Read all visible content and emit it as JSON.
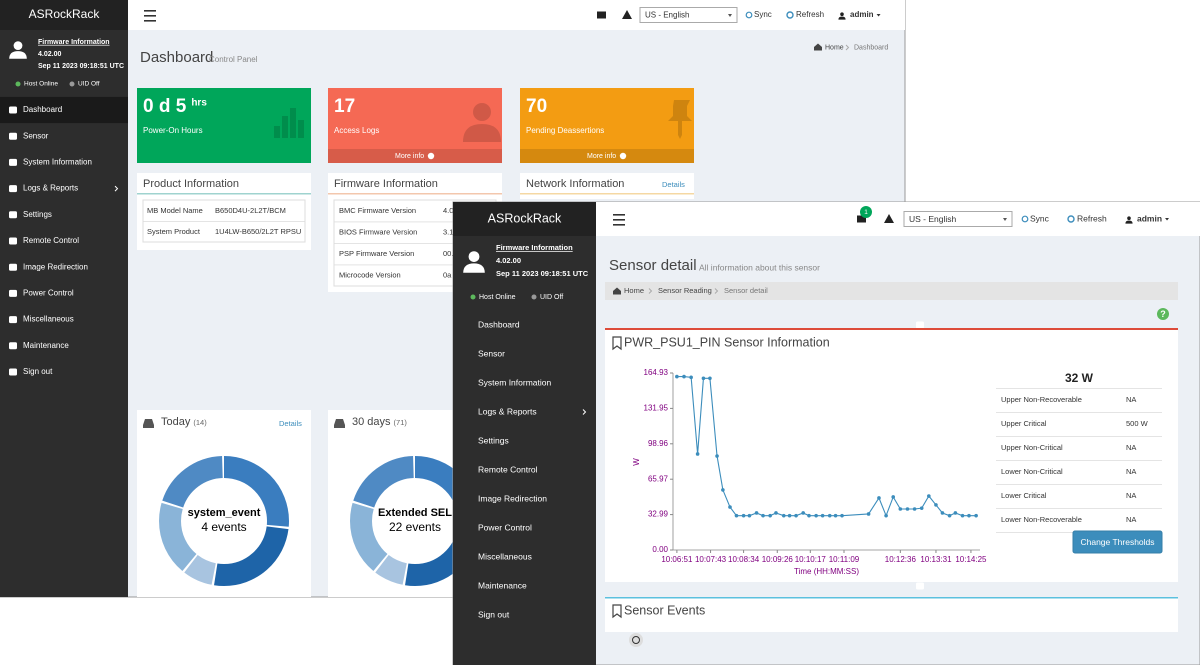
{
  "back": {
    "brand": "ASRockRack",
    "firmware": {
      "label": "Firmware Information",
      "version": "4.02.00",
      "date": "Sep 11 2023 09:18:51 UTC"
    },
    "status": {
      "host": "Host Online",
      "uid": "UID Off"
    },
    "menu": [
      "Dashboard",
      "Sensor",
      "System Information",
      "Logs & Reports",
      "Settings",
      "Remote Control",
      "Image Redirection",
      "Power Control",
      "Miscellaneous",
      "Maintenance",
      "Sign out"
    ],
    "topbar": {
      "language": "US - English",
      "sync": "Sync",
      "refresh": "Refresh",
      "user": "admin"
    },
    "heading": "Dashboard",
    "subheading": "Control Panel",
    "breadcrumb": [
      "Home",
      "Dashboard"
    ],
    "tiles": [
      {
        "value": "0 d 5",
        "unit": "hrs",
        "label": "Power-On Hours",
        "color": "#00a65a"
      },
      {
        "value": "17",
        "label": "Access Logs",
        "more": "More info",
        "color": "#f56954"
      },
      {
        "value": "70",
        "label": "Pending Deassertions",
        "more": "More info",
        "color": "#f39c12"
      }
    ],
    "product": {
      "title": "Product Information",
      "rows": [
        [
          "MB Model Name",
          "B650D4U-2L2T/BCM"
        ],
        [
          "System Product",
          "1U4LW-B650/2L2T RPSU"
        ]
      ]
    },
    "firmware_panel": {
      "title": "Firmware Information",
      "rows": [
        [
          "BMC Firmware Version",
          "4.0"
        ],
        [
          "BIOS Firmware Version",
          "3.1"
        ],
        [
          "PSP Firmware Version",
          "00."
        ],
        [
          "Microcode Version",
          "0a"
        ]
      ]
    },
    "network": {
      "title": "Network Information",
      "link": "Details"
    },
    "today": {
      "title": "Today",
      "count": "(14)",
      "link": "Details",
      "center": "system_event",
      "events": "4 events"
    },
    "month": {
      "title": "30 days",
      "count": "(71)",
      "center": "Extended SEL",
      "events": "22 events"
    }
  },
  "front": {
    "brand": "ASRockRack",
    "firmware": {
      "label": "Firmware Information",
      "version": "4.02.00",
      "date": "Sep 11 2023 09:18:51 UTC"
    },
    "status": {
      "host": "Host Online",
      "uid": "UID Off"
    },
    "menu": [
      "Dashboard",
      "Sensor",
      "System Information",
      "Logs & Reports",
      "Settings",
      "Remote Control",
      "Image Redirection",
      "Power Control",
      "Miscellaneous",
      "Maintenance",
      "Sign out"
    ],
    "topbar": {
      "badge": "1",
      "language": "US - English",
      "sync": "Sync",
      "refresh": "Refresh",
      "user": "admin"
    },
    "heading": "Sensor detail",
    "subheading": "All information about this sensor",
    "breadcrumb": [
      "Home",
      "Sensor Reading",
      "Sensor detail"
    ],
    "help": "?",
    "panel_title": "PWR_PSU1_PIN Sensor Information",
    "reading": "32 W",
    "thresholds": [
      [
        "Upper Non-Recoverable",
        "NA"
      ],
      [
        "Upper Critical",
        "500 W"
      ],
      [
        "Upper Non-Critical",
        "NA"
      ],
      [
        "Lower Non-Critical",
        "NA"
      ],
      [
        "Lower Critical",
        "NA"
      ],
      [
        "Lower Non-Recoverable",
        "NA"
      ]
    ],
    "button": "Change Thresholds",
    "events_title": "Sensor Events"
  },
  "chart_data": {
    "type": "line",
    "xlabel": "Time (HH:MM:SS)",
    "ylabel": "W",
    "color": "#3c8dbc",
    "x": [
      "10:06:51",
      "10:07:02",
      "10:07:13",
      "10:07:23",
      "10:07:32",
      "10:07:42",
      "10:07:53",
      "10:08:02",
      "10:08:13",
      "10:08:23",
      "10:08:34",
      "10:08:43",
      "10:08:54",
      "10:09:04",
      "10:09:15",
      "10:09:24",
      "10:09:36",
      "10:09:45",
      "10:09:55",
      "10:10:06",
      "10:10:15",
      "10:10:26",
      "10:10:36",
      "10:10:47",
      "10:10:56",
      "10:11:06",
      "10:11:47",
      "10:12:03",
      "10:12:14",
      "10:12:25",
      "10:12:36",
      "10:12:47",
      "10:12:58",
      "10:13:09",
      "10:13:20",
      "10:13:31",
      "10:13:41",
      "10:13:52",
      "10:14:01",
      "10:14:12",
      "10:14:22",
      "10:14:33"
    ],
    "values": [
      161.6,
      161.6,
      160.9,
      89.5,
      160,
      160,
      87.6,
      56,
      40,
      32,
      32,
      32,
      34.5,
      32,
      32,
      34.5,
      32,
      32,
      32,
      34.5,
      32,
      32,
      32,
      32,
      32,
      32,
      33.6,
      48.5,
      32,
      49.4,
      38.2,
      38.2,
      38.2,
      39,
      50.3,
      42,
      34.5,
      32,
      34.5,
      32,
      32,
      32
    ],
    "xlim": [
      "10:06:45",
      "10:14:39"
    ],
    "xticks": [
      "10:06:51",
      "10:07:43",
      "10:08:34",
      "10:09:26",
      "10:10:17",
      "10:11:09",
      "10:12:36",
      "10:13:31",
      "10:14:25"
    ],
    "ylim": [
      0,
      164.93
    ],
    "yticks": [
      {
        "value": 0,
        "label": "0.00"
      },
      32.99,
      65.97,
      98.96,
      131.95,
      164.93
    ],
    "grid": false
  }
}
